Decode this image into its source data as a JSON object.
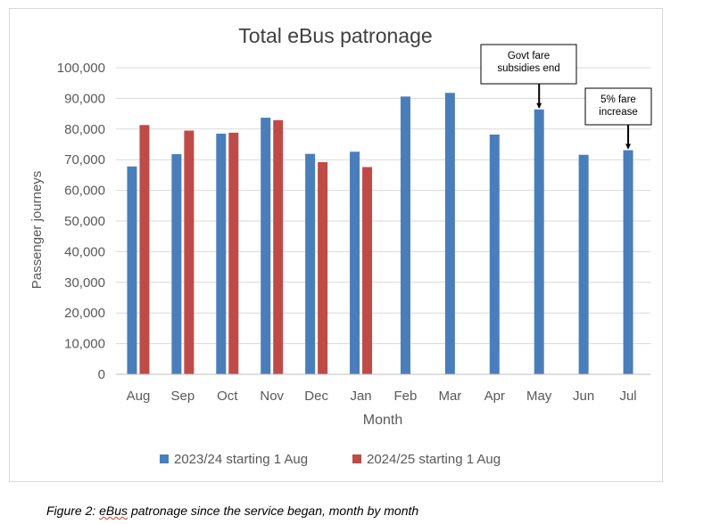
{
  "chart_data": {
    "type": "bar",
    "title": "Total eBus patronage",
    "xlabel": "Month",
    "ylabel": "Passenger journeys",
    "ylim": [
      0,
      100000
    ],
    "yticks": [
      0,
      10000,
      20000,
      30000,
      40000,
      50000,
      60000,
      70000,
      80000,
      90000,
      100000
    ],
    "ytick_labels": [
      "0",
      "10,000",
      "20,000",
      "30,000",
      "40,000",
      "50,000",
      "60,000",
      "70,000",
      "80,000",
      "90,000",
      "100,000"
    ],
    "grid": true,
    "legend_position": "bottom",
    "categories": [
      "Aug",
      "Sep",
      "Oct",
      "Nov",
      "Dec",
      "Jan",
      "Feb",
      "Mar",
      "Apr",
      "May",
      "Jun",
      "Jul"
    ],
    "series": [
      {
        "name": "2023/24 starting 1 Aug",
        "color": "#4a7ebb",
        "values": [
          67800,
          71800,
          78500,
          83700,
          71900,
          72600,
          90600,
          91800,
          78200,
          86400,
          71600,
          73100
        ]
      },
      {
        "name": "2024/25 starting 1 Aug",
        "color": "#be4b48",
        "values": [
          81300,
          79500,
          78800,
          82900,
          69200,
          67600,
          null,
          null,
          null,
          null,
          null,
          null
        ]
      }
    ],
    "annotations": [
      {
        "lines": [
          "Govt fare",
          "subsidies end"
        ],
        "category": "May"
      },
      {
        "lines": [
          "5% fare",
          "increase"
        ],
        "category": "Jul"
      }
    ]
  },
  "caption": {
    "prefix": "Figure 2: ",
    "underlined": "eBus",
    "suffix": " patronage since the service began, month by month"
  }
}
